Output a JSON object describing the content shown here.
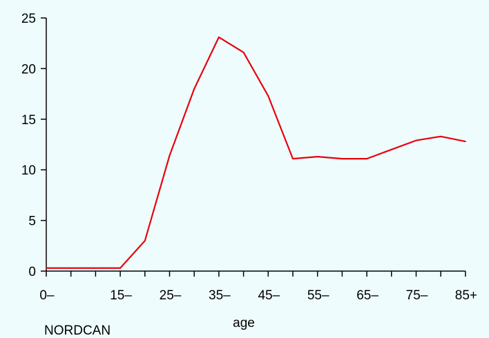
{
  "chart_data": {
    "type": "line",
    "x": [
      "0–",
      "5–",
      "10–",
      "15–",
      "20–",
      "25–",
      "30–",
      "35–",
      "40–",
      "45–",
      "50–",
      "55–",
      "60–",
      "65–",
      "70–",
      "75–",
      "80–",
      "85+"
    ],
    "x_tick_labels": [
      "0–",
      "15–",
      "25–",
      "35–",
      "45–",
      "55–",
      "65–",
      "75–",
      "85+"
    ],
    "series": [
      {
        "color": "#e8000b",
        "values": [
          0.3,
          0.3,
          0.3,
          0.3,
          3.0,
          11.4,
          18.0,
          23.1,
          21.6,
          17.3,
          11.1,
          11.3,
          11.1,
          11.1,
          12.0,
          12.9,
          13.3,
          12.8
        ]
      }
    ],
    "xlabel": "age",
    "ylabel": "",
    "ylim": [
      0,
      25
    ],
    "y_ticks": [
      0,
      5,
      10,
      15,
      20,
      25
    ],
    "grid": false
  },
  "source_label": "NORDCAN",
  "colors": {
    "background": "#eefcfd",
    "axis": "#000000",
    "line": "#e8000b"
  }
}
